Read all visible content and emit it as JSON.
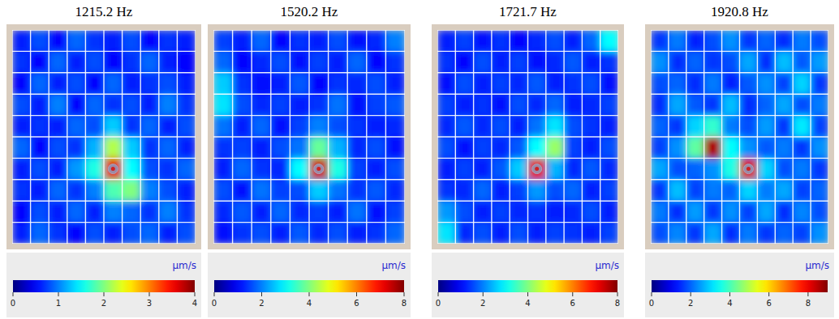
{
  "chart_data": [
    {
      "type": "heatmap",
      "title": "1215.2 Hz",
      "grid": true,
      "colorbar_label": "μm/s",
      "zlim": [
        0,
        4
      ],
      "zticks": [
        0,
        1,
        2,
        3,
        4
      ],
      "cells": [
        [
          0.6,
          0.8,
          0.5,
          0.9,
          0.7,
          0.6,
          0.8,
          0.5,
          0.7,
          0.6
        ],
        [
          0.7,
          0.5,
          0.9,
          0.6,
          0.8,
          0.5,
          0.7,
          0.9,
          0.6,
          0.5
        ],
        [
          0.5,
          0.9,
          0.6,
          0.8,
          0.5,
          0.9,
          0.6,
          0.7,
          0.8,
          0.6
        ],
        [
          0.8,
          0.6,
          1.0,
          0.5,
          0.9,
          0.7,
          0.8,
          0.6,
          1.0,
          0.7
        ],
        [
          0.6,
          0.7,
          0.6,
          0.9,
          0.8,
          1.3,
          0.7,
          0.9,
          0.6,
          0.8
        ],
        [
          0.9,
          0.5,
          0.8,
          0.7,
          1.2,
          2.2,
          1.3,
          0.7,
          0.9,
          0.6
        ],
        [
          0.6,
          0.8,
          0.6,
          1.1,
          1.6,
          3.6,
          1.5,
          0.8,
          0.7,
          0.9
        ],
        [
          0.7,
          0.6,
          0.9,
          0.7,
          1.0,
          1.8,
          2.0,
          1.0,
          0.8,
          0.6
        ],
        [
          0.5,
          0.8,
          0.6,
          0.9,
          0.6,
          1.0,
          0.9,
          0.7,
          1.0,
          0.7
        ],
        [
          0.6,
          0.9,
          0.7,
          0.5,
          0.8,
          0.6,
          0.8,
          0.9,
          0.6,
          0.8
        ]
      ]
    },
    {
      "type": "heatmap",
      "title": "1520.2 Hz",
      "grid": true,
      "colorbar_label": "μm/s",
      "zlim": [
        0,
        8
      ],
      "zticks": [
        0,
        2,
        4,
        6,
        8
      ],
      "cells": [
        [
          1.5,
          1.2,
          1.8,
          1.0,
          1.4,
          1.2,
          1.6,
          1.1,
          1.3,
          2.0
        ],
        [
          1.8,
          1.0,
          1.3,
          1.6,
          1.1,
          1.5,
          1.2,
          1.8,
          1.0,
          1.4
        ],
        [
          2.6,
          1.4,
          1.1,
          1.2,
          1.7,
          1.0,
          1.4,
          1.3,
          1.6,
          1.2
        ],
        [
          2.8,
          1.6,
          1.3,
          1.5,
          1.2,
          1.4,
          1.9,
          1.1,
          1.5,
          1.7
        ],
        [
          1.9,
          1.2,
          1.8,
          1.1,
          1.5,
          2.0,
          1.6,
          1.4,
          1.2,
          1.3
        ],
        [
          1.4,
          1.5,
          1.2,
          1.6,
          1.9,
          3.8,
          2.4,
          1.3,
          1.6,
          1.1
        ],
        [
          1.2,
          1.8,
          1.4,
          1.3,
          3.0,
          7.4,
          3.2,
          1.5,
          1.2,
          1.6
        ],
        [
          1.6,
          1.1,
          1.9,
          1.5,
          1.6,
          2.6,
          1.9,
          1.4,
          1.7,
          1.3
        ],
        [
          1.3,
          1.7,
          1.2,
          1.8,
          1.3,
          1.5,
          1.2,
          1.9,
          1.1,
          1.5
        ],
        [
          1.1,
          1.4,
          1.6,
          1.2,
          1.7,
          1.3,
          1.6,
          1.2,
          1.4,
          1.8
        ]
      ]
    },
    {
      "type": "heatmap",
      "title": "1721.7 Hz",
      "grid": true,
      "colorbar_label": "μm/s",
      "zlim": [
        0,
        8
      ],
      "zticks": [
        0,
        2,
        4,
        6,
        8
      ],
      "cells": [
        [
          1.2,
          1.5,
          1.1,
          1.4,
          1.0,
          1.3,
          1.6,
          1.2,
          1.8,
          3.0
        ],
        [
          1.4,
          1.0,
          1.6,
          1.2,
          1.5,
          1.1,
          1.3,
          1.7,
          1.2,
          1.4
        ],
        [
          1.1,
          1.6,
          1.2,
          1.5,
          1.3,
          1.7,
          1.2,
          1.4,
          1.6,
          1.1
        ],
        [
          1.5,
          1.2,
          1.4,
          1.1,
          1.6,
          1.3,
          1.8,
          1.2,
          1.3,
          1.5
        ],
        [
          1.3,
          1.7,
          1.3,
          1.6,
          1.2,
          1.9,
          2.8,
          1.6,
          1.4,
          1.2
        ],
        [
          1.6,
          1.1,
          1.5,
          1.3,
          1.7,
          3.0,
          4.2,
          1.5,
          1.2,
          1.6
        ],
        [
          1.2,
          1.5,
          1.2,
          1.7,
          2.6,
          7.2,
          2.4,
          1.3,
          1.7,
          1.3
        ],
        [
          1.4,
          1.3,
          1.8,
          1.2,
          1.5,
          2.2,
          1.6,
          1.8,
          1.2,
          1.5
        ],
        [
          2.2,
          1.6,
          1.2,
          1.5,
          1.3,
          1.4,
          1.2,
          1.3,
          1.6,
          1.2
        ],
        [
          2.8,
          1.3,
          1.6,
          1.2,
          1.6,
          1.2,
          1.5,
          1.4,
          1.2,
          1.5
        ]
      ]
    },
    {
      "type": "heatmap",
      "title": "1920.8 Hz",
      "grid": true,
      "colorbar_label": "μm/s",
      "zlim": [
        0,
        9
      ],
      "zticks": [
        0,
        2,
        4,
        6,
        8
      ],
      "cells": [
        [
          1.6,
          2.2,
          1.4,
          1.8,
          2.4,
          1.6,
          2.0,
          1.5,
          2.2,
          1.8
        ],
        [
          2.4,
          1.5,
          2.0,
          1.6,
          1.8,
          2.6,
          1.5,
          2.8,
          1.9,
          2.5
        ],
        [
          1.8,
          2.0,
          1.5,
          2.2,
          1.4,
          1.9,
          2.4,
          1.7,
          3.0,
          1.6
        ],
        [
          1.5,
          2.6,
          1.9,
          1.6,
          2.8,
          1.5,
          2.0,
          2.6,
          1.8,
          2.2
        ],
        [
          2.0,
          1.6,
          3.0,
          3.8,
          2.2,
          1.8,
          2.5,
          1.6,
          3.2,
          1.7
        ],
        [
          1.7,
          2.4,
          4.2,
          8.6,
          3.4,
          2.4,
          1.9,
          2.2,
          1.6,
          2.4
        ],
        [
          2.6,
          1.8,
          2.0,
          2.4,
          3.6,
          8.2,
          3.0,
          1.8,
          2.2,
          1.6
        ],
        [
          1.6,
          2.8,
          1.7,
          2.2,
          2.0,
          3.0,
          2.2,
          2.6,
          1.7,
          2.0
        ],
        [
          2.2,
          1.5,
          2.5,
          1.6,
          2.4,
          1.7,
          2.6,
          1.5,
          2.3,
          1.8
        ],
        [
          1.8,
          2.3,
          1.6,
          2.6,
          1.5,
          2.2,
          1.6,
          2.0,
          1.7,
          2.4
        ]
      ]
    }
  ]
}
